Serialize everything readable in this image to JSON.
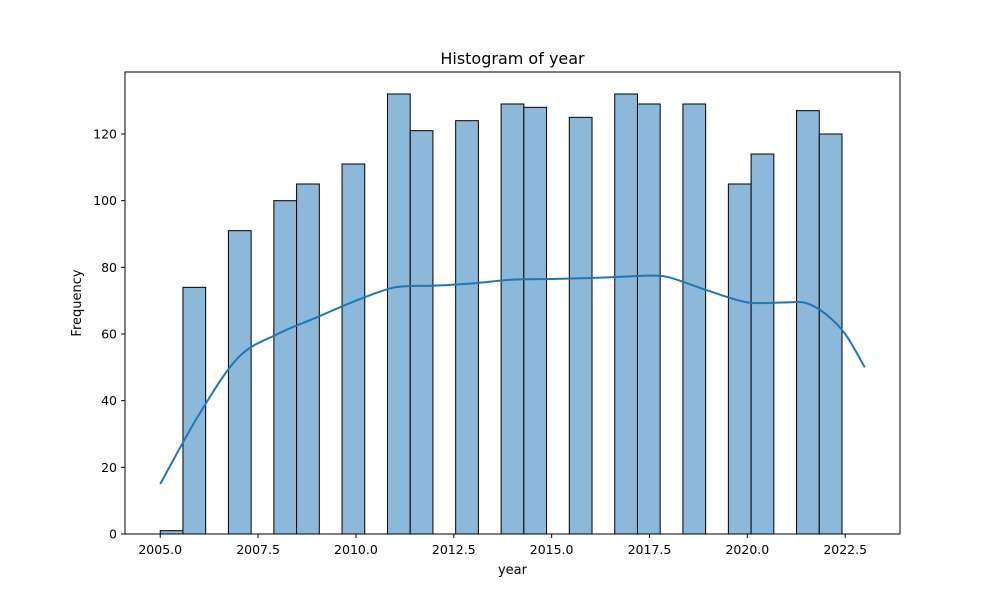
{
  "chart_data": {
    "type": "bar",
    "subtype": "histogram",
    "title": "Histogram of year",
    "xlabel": "year",
    "ylabel": "Frequency",
    "xlim": [
      2004.1,
      2023.9
    ],
    "ylim": [
      0,
      138.6
    ],
    "x_ticks": [
      2005.0,
      2007.5,
      2010.0,
      2012.5,
      2015.0,
      2017.5,
      2020.0,
      2022.5
    ],
    "x_tick_labels": [
      "2005.0",
      "2007.5",
      "2010.0",
      "2012.5",
      "2015.0",
      "2017.5",
      "2020.0",
      "2022.5"
    ],
    "y_ticks": [
      0,
      20,
      40,
      60,
      80,
      100,
      120
    ],
    "y_tick_labels": [
      "0",
      "20",
      "40",
      "60",
      "80",
      "100",
      "120"
    ],
    "bin_start": 2005.0,
    "bin_width": 0.5806,
    "bins": [
      {
        "bin": 0,
        "count": 1
      },
      {
        "bin": 1,
        "count": 74
      },
      {
        "bin": 3,
        "count": 91
      },
      {
        "bin": 5,
        "count": 100
      },
      {
        "bin": 6,
        "count": 105
      },
      {
        "bin": 8,
        "count": 111
      },
      {
        "bin": 10,
        "count": 132
      },
      {
        "bin": 11,
        "count": 121
      },
      {
        "bin": 13,
        "count": 124
      },
      {
        "bin": 15,
        "count": 129
      },
      {
        "bin": 16,
        "count": 128
      },
      {
        "bin": 18,
        "count": 125
      },
      {
        "bin": 20,
        "count": 132
      },
      {
        "bin": 21,
        "count": 129
      },
      {
        "bin": 23,
        "count": 129
      },
      {
        "bin": 25,
        "count": 105
      },
      {
        "bin": 26,
        "count": 114
      },
      {
        "bin": 28,
        "count": 127
      },
      {
        "bin": 29,
        "count": 120
      }
    ],
    "kde": {
      "x": [
        2005.0,
        2006.0,
        2007.0,
        2008.0,
        2009.0,
        2010.0,
        2011.0,
        2012.0,
        2013.0,
        2014.0,
        2015.0,
        2016.0,
        2017.0,
        2017.5,
        2018.0,
        2019.0,
        2020.0,
        2021.0,
        2021.5,
        2022.0,
        2022.5,
        2023.0
      ],
      "y": [
        15,
        36,
        53,
        60,
        65,
        70,
        74,
        74.5,
        75.2,
        76.3,
        76.5,
        76.8,
        77.3,
        77.5,
        77,
        73,
        69.5,
        69.5,
        69.3,
        66,
        60,
        50
      ]
    },
    "grid": false,
    "legend": "none",
    "colors": {
      "bar_fill": "#8cb8d9",
      "bar_edge": "#000000",
      "kde_line": "#1f77b4",
      "axes": "#000000",
      "background": "#ffffff"
    }
  }
}
